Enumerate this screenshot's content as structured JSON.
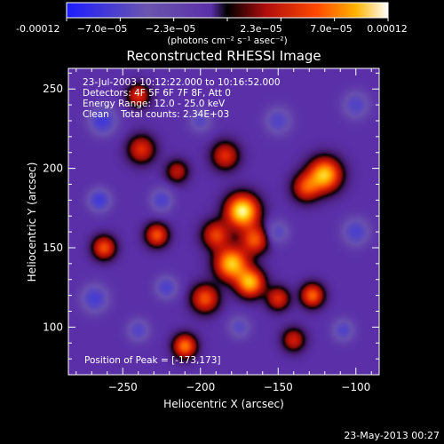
{
  "chart_data": {
    "type": "heatmap",
    "title": "Reconstructed RHESSI Image",
    "xlabel": "Heliocentric X (arcsec)",
    "ylabel": "Heliocentric Y (arcsec)",
    "xlim": [
      -285,
      -85
    ],
    "ylim": [
      70,
      263
    ],
    "xticks": [
      -250,
      -200,
      -150,
      -100
    ],
    "yticks": [
      100,
      150,
      200,
      250
    ],
    "colorbar": {
      "tick_labels": [
        "-0.00012",
        "−7.0e−05",
        "−2.3e−05",
        "2.3e−05",
        "7.0e−05",
        "0.00012"
      ],
      "unit_label": "(photons cm⁻² s⁻¹ asec⁻²)",
      "range": [
        -0.00012,
        0.00012
      ]
    },
    "annotations": [
      "23-Jul-2003 10:12:22.000 to 10:16:52.000",
      "Detectors: 4F 5F 6F 7F 8F, Att 0",
      "Energy Range: 12.0 - 25.0 keV",
      "Clean    Total counts: 2.34E+03"
    ],
    "peak_label": "Position of Peak = [-173,173]",
    "peak": [
      -173,
      173
    ],
    "footer": "23-May-2013 00:27",
    "sources": [
      {
        "x": -173,
        "y": 173,
        "amp": 1.0,
        "sigma": 7
      },
      {
        "x": -180,
        "y": 140,
        "amp": 0.85,
        "sigma": 7
      },
      {
        "x": -168,
        "y": 128,
        "amp": 0.8,
        "sigma": 6
      },
      {
        "x": -197,
        "y": 118,
        "amp": 0.55,
        "sigma": 6
      },
      {
        "x": -210,
        "y": 88,
        "amp": 0.65,
        "sigma": 5
      },
      {
        "x": -190,
        "y": 158,
        "amp": 0.5,
        "sigma": 6
      },
      {
        "x": -165,
        "y": 155,
        "amp": 0.55,
        "sigma": 6
      },
      {
        "x": -120,
        "y": 196,
        "amp": 0.85,
        "sigma": 7
      },
      {
        "x": -132,
        "y": 188,
        "amp": 0.5,
        "sigma": 6
      },
      {
        "x": -128,
        "y": 120,
        "amp": 0.6,
        "sigma": 5
      },
      {
        "x": -150,
        "y": 118,
        "amp": 0.45,
        "sigma": 5
      },
      {
        "x": -262,
        "y": 150,
        "amp": 0.55,
        "sigma": 5
      },
      {
        "x": -228,
        "y": 158,
        "amp": 0.55,
        "sigma": 5
      },
      {
        "x": -238,
        "y": 212,
        "amp": 0.45,
        "sigma": 6
      },
      {
        "x": -240,
        "y": 246,
        "amp": 0.45,
        "sigma": 5
      },
      {
        "x": -184,
        "y": 208,
        "amp": 0.45,
        "sigma": 6
      },
      {
        "x": -215,
        "y": 198,
        "amp": 0.35,
        "sigma": 5
      },
      {
        "x": -140,
        "y": 92,
        "amp": 0.4,
        "sigma": 5
      },
      {
        "x": -263,
        "y": 230,
        "amp": -0.55,
        "sigma": 6
      },
      {
        "x": -265,
        "y": 180,
        "amp": -0.55,
        "sigma": 5
      },
      {
        "x": -268,
        "y": 118,
        "amp": -0.5,
        "sigma": 6
      },
      {
        "x": -225,
        "y": 180,
        "amp": -0.45,
        "sigma": 5
      },
      {
        "x": -222,
        "y": 125,
        "amp": -0.45,
        "sigma": 5
      },
      {
        "x": -240,
        "y": 98,
        "amp": -0.4,
        "sigma": 5
      },
      {
        "x": -100,
        "y": 240,
        "amp": -0.4,
        "sigma": 6
      },
      {
        "x": -100,
        "y": 160,
        "amp": -0.45,
        "sigma": 6
      },
      {
        "x": -108,
        "y": 98,
        "amp": -0.4,
        "sigma": 5
      },
      {
        "x": -150,
        "y": 230,
        "amp": -0.4,
        "sigma": 6
      },
      {
        "x": -150,
        "y": 160,
        "amp": -0.35,
        "sigma": 5
      },
      {
        "x": -200,
        "y": 230,
        "amp": -0.35,
        "sigma": 5
      },
      {
        "x": -175,
        "y": 100,
        "amp": -0.35,
        "sigma": 5
      }
    ]
  }
}
